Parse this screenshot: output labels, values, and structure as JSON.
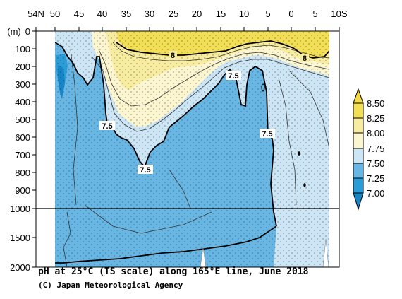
{
  "chart_data": {
    "type": "heatmap",
    "title": "pH at 25°C (TS scale) along 165°E line, June 2018",
    "credit": "(C) Japan Meteorological Agency",
    "ylabel_unit": "(m)",
    "x_ticks": [
      "54N",
      "50",
      "45",
      "40",
      "35",
      "30",
      "25",
      "20",
      "15",
      "10",
      "5",
      "0",
      "5",
      "10S"
    ],
    "y_ticks_upper": [
      "0",
      "100",
      "200",
      "300",
      "400",
      "500",
      "600",
      "700",
      "800",
      "900",
      "1000"
    ],
    "y_ticks_lower": [
      "1500",
      "2000"
    ],
    "xlim": [
      "54N",
      "10S"
    ],
    "ylim": [
      0,
      2000
    ],
    "y_scale": "piecewise linear (0–1000 m expanded, 1000–2000 m compressed)",
    "colorbar": {
      "levels": [
        "8.50",
        "8.25",
        "8.00",
        "7.75",
        "7.50",
        "7.25",
        "7.00"
      ],
      "colors": {
        "gt_8_50": "#f4d020",
        "8.25_8.50": "#f3df55",
        "8.00_8.25": "#f8eca0",
        "7.75_8.00": "#fbf6cf",
        "7.50_7.75": "#cde6f6",
        "7.25_7.50": "#68b6e3",
        "7.00_7.25": "#2a9dd8",
        "lt_7_00": "#1585c8"
      }
    },
    "contour_labels": [
      "8",
      "8",
      "7.5",
      "7.5",
      "7.5",
      "7.5"
    ],
    "stippling": "dotted overlay over deep water"
  }
}
